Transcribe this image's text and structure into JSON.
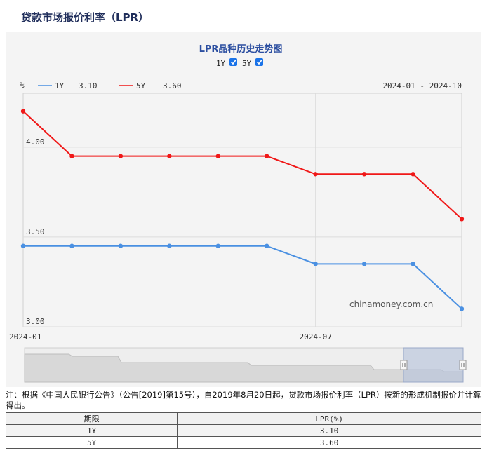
{
  "page": {
    "title": "贷款市场报价利率（LPR）"
  },
  "chart": {
    "title": "LPR品种历史走势图",
    "toggles": [
      {
        "label": "1Y",
        "checked": true
      },
      {
        "label": "5Y",
        "checked": true
      }
    ],
    "unit": "%",
    "date_range": "2024-01 - 2024-10",
    "watermark": "chinamoney.com.cn",
    "legend": [
      {
        "name": "1Y",
        "value": "3.10",
        "color": "#4a90e2"
      },
      {
        "name": "5Y",
        "value": "3.60",
        "color": "#f01818"
      }
    ]
  },
  "chart_data": {
    "type": "line",
    "x": [
      "2024-01",
      "2024-02",
      "2024-03",
      "2024-04",
      "2024-05",
      "2024-06",
      "2024-07",
      "2024-08",
      "2024-09",
      "2024-10"
    ],
    "series": [
      {
        "name": "1Y",
        "values": [
          3.45,
          3.45,
          3.45,
          3.45,
          3.45,
          3.45,
          3.35,
          3.35,
          3.35,
          3.1
        ],
        "color": "#4a90e2"
      },
      {
        "name": "5Y",
        "values": [
          4.2,
          3.95,
          3.95,
          3.95,
          3.95,
          3.95,
          3.85,
          3.85,
          3.85,
          3.6
        ],
        "color": "#f01818"
      }
    ],
    "y_ticks": [
      "4.00",
      "3.50",
      "3.00"
    ],
    "x_ticks": [
      "2024-01",
      "2024-07"
    ],
    "ylim": [
      3.0,
      4.3
    ],
    "grid": true,
    "legend_position": "top-left"
  },
  "note": "注：根据《中国人民银行公告》（公告[2019]第15号），自2019年8月20日起，贷款市场报价利率（LPR）按新的形成机制报价并计算得出。",
  "table": {
    "headers": [
      "期限",
      "LPR(%)"
    ],
    "rows": [
      [
        "1Y",
        "3.10"
      ],
      [
        "5Y",
        "3.60"
      ]
    ]
  }
}
